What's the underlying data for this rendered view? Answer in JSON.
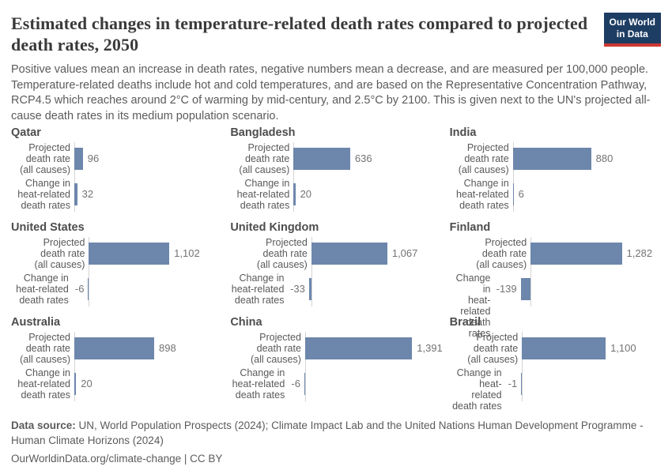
{
  "header": {
    "title": "Estimated changes in temperature-related death rates compared to projected death rates, 2050",
    "subtitle": "Positive values mean an increase in death rates, negative numbers mean a decrease, and are measured per 100,000 people. Temperature-related deaths include hot and cold temperatures, and are based on the Representative Concentration Pathway, RCP4.5 which reaches around 2°C of warming by mid-century, and 2.5°C by 2100. This is given next to the UN's projected all-cause death rates in its medium population scenario.",
    "logo": {
      "line1": "Our World",
      "line2": "in Data",
      "bg_color": "#1d3d63",
      "accent_color": "#cd3731"
    }
  },
  "chart_data": {
    "type": "bar",
    "orientation": "horizontal",
    "title": "Estimated changes in temperature-related death rates compared to projected death rates, 2050",
    "unit": "per 100,000 people",
    "bar_color": "#6d86ac",
    "axis_color": "#d4d4d4",
    "grid": false,
    "legend": "none",
    "categories": [
      "Projected death rate (all causes)",
      "Change in heat-related death rates"
    ],
    "category_lines": [
      "Projected\ndeath rate\n(all causes)",
      "Change in\nheat-related\ndeath rates"
    ],
    "panels": [
      {
        "country": "Qatar",
        "values": [
          96,
          32
        ],
        "labels": [
          "96",
          "32"
        ],
        "xlim": [
          0,
          1600
        ]
      },
      {
        "country": "Bangladesh",
        "values": [
          636,
          20
        ],
        "labels": [
          "636",
          "20"
        ],
        "xlim": [
          0,
          1600
        ]
      },
      {
        "country": "India",
        "values": [
          880,
          6
        ],
        "labels": [
          "880",
          "6"
        ],
        "xlim": [
          0,
          1600
        ]
      },
      {
        "country": "United States",
        "values": [
          1102,
          -6
        ],
        "labels": [
          "1,102",
          "-6"
        ],
        "xlim": [
          -200,
          1750
        ]
      },
      {
        "country": "United Kingdom",
        "values": [
          1067,
          -33
        ],
        "labels": [
          "1,067",
          "-33"
        ],
        "xlim": [
          -250,
          1750
        ]
      },
      {
        "country": "Finland",
        "values": [
          1282,
          -139
        ],
        "labels": [
          "1,282",
          "-139"
        ],
        "xlim": [
          -250,
          1750
        ]
      },
      {
        "country": "Australia",
        "values": [
          898,
          20
        ],
        "labels": [
          "898",
          "20"
        ],
        "xlim": [
          0,
          1600
        ]
      },
      {
        "country": "China",
        "values": [
          1391,
          -6
        ],
        "labels": [
          "1,391",
          "-6"
        ],
        "xlim": [
          -150,
          1700
        ]
      },
      {
        "country": "Brazil",
        "values": [
          1100,
          -1
        ],
        "labels": [
          "1,100",
          "-1"
        ],
        "xlim": [
          -120,
          1750
        ]
      }
    ]
  },
  "footer": {
    "source_label": "Data source:",
    "source_text": " UN, World Population Prospects (2024); Climate Impact Lab and the United Nations Human Development Programme - Human Climate Horizons (2024)",
    "link_line": "OurWorldinData.org/climate-change | CC BY"
  }
}
